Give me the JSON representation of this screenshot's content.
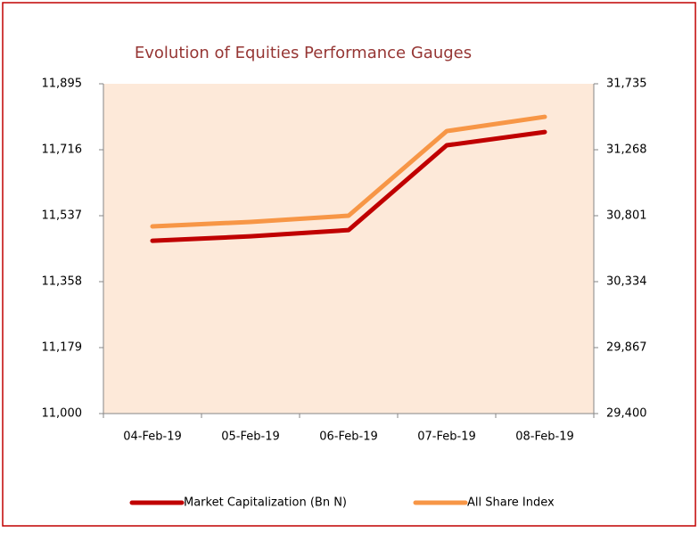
{
  "chart_data": {
    "type": "line",
    "title": "Evolution of Equities Performance Gauges",
    "categories": [
      "04-Feb-19",
      "05-Feb-19",
      "06-Feb-19",
      "07-Feb-19",
      "08-Feb-19"
    ],
    "series": [
      {
        "name": "Market Capitalization (Bn N)",
        "color": "#c00000",
        "values": [
          11469,
          11481,
          11498,
          11728,
          11764
        ]
      },
      {
        "name": "All Share Index",
        "color": "#f79646",
        "axis": "y2",
        "values": [
          30725,
          30757,
          30801,
          31400,
          31501
        ]
      }
    ],
    "ylim": [
      11000,
      11895
    ],
    "yticks": [
      {
        "value": 11000,
        "label": "11,000"
      },
      {
        "value": 11179,
        "label": "11,179"
      },
      {
        "value": 11358,
        "label": "11,358"
      },
      {
        "value": 11537,
        "label": "11,537"
      },
      {
        "value": 11716,
        "label": "11,716"
      },
      {
        "value": 11895,
        "label": "11,895"
      }
    ],
    "y2lim": [
      29400,
      31735
    ],
    "y2ticks": [
      {
        "value": 29400,
        "label": "29,400"
      },
      {
        "value": 29867,
        "label": "29,867"
      },
      {
        "value": 30334,
        "label": "30,334"
      },
      {
        "value": 30801,
        "label": "30,801"
      },
      {
        "value": 31268,
        "label": "31,268"
      },
      {
        "value": 31735,
        "label": "31,735"
      }
    ],
    "legend": "bottom"
  }
}
